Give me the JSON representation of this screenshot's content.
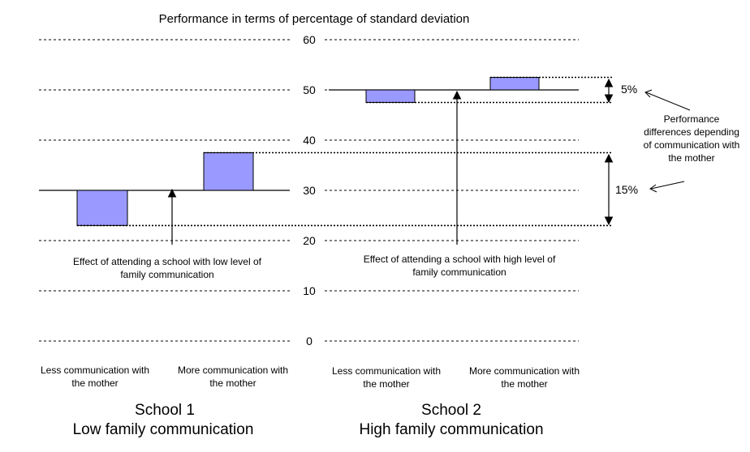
{
  "chart_data": {
    "type": "bar",
    "title": "Performance in terms of percentage of standard deviation",
    "ylim": [
      0,
      60
    ],
    "y_ticks": [
      "60",
      "50",
      "40",
      "30",
      "20",
      "10",
      "0"
    ],
    "grid": true,
    "colors": {
      "bar_fill": "#9999ff",
      "bar_stroke": "#000000",
      "grid": "#000000"
    },
    "groups": [
      {
        "title": "School 1",
        "subtitle": "Low family communication",
        "baseline": 30,
        "categories": [
          "Less communication with the mother",
          "More communication with the mother"
        ],
        "values": [
          23,
          37.5
        ],
        "effect_annotation": "Effect of attending a school with low level of family communication"
      },
      {
        "title": "School 2",
        "subtitle": "High family communication",
        "baseline": 50,
        "categories": [
          "Less communication with the mother",
          "More communication with the mother"
        ],
        "values": [
          47.5,
          52.5
        ],
        "effect_annotation": "Effect of attending a school with high level of family communication"
      }
    ],
    "differences": [
      {
        "label": "5%",
        "from": 47.5,
        "to": 52.5
      },
      {
        "label": "15%",
        "from": 23,
        "to": 37.5
      }
    ],
    "annotation": "Performance differences depending of communication with the mother"
  }
}
